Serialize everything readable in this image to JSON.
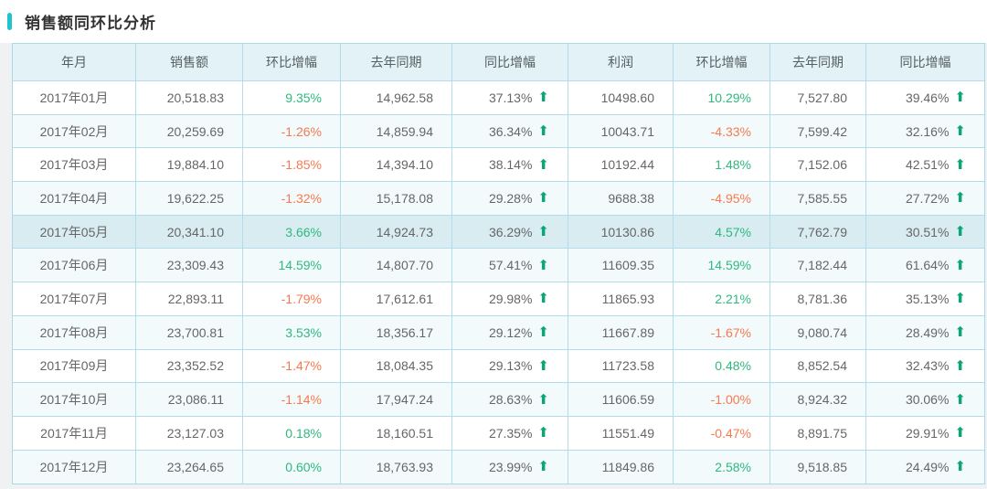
{
  "page": {
    "title": "销售额同环比分析",
    "accent_color": "#1fc4cc"
  },
  "table": {
    "columns": [
      "年月",
      "销售额",
      "环比增幅",
      "去年同期",
      "同比增幅",
      "利润",
      "环比增幅",
      "去年同期",
      "同比增幅"
    ],
    "arrow_icon": "⬆",
    "colors": {
      "positive": "#2eb97e",
      "negative": "#f8794f",
      "arrow_up": "#0ba578",
      "header_bg": "#e2f2f6",
      "row_alt_bg": "#f2fafb",
      "row_highlight_bg": "#d8ecf2",
      "border": "#b2dcea"
    },
    "highlighted_row": "2017年05月",
    "rows": [
      {
        "month": "2017年01月",
        "sales": "20,518.83",
        "sales_mom": "9.35%",
        "sales_ly": "14,962.58",
        "sales_yoy": "37.13%",
        "profit": "10498.60",
        "profit_mom": "10.29%",
        "profit_ly": "7,527.80",
        "profit_yoy": "39.46%"
      },
      {
        "month": "2017年02月",
        "sales": "20,259.69",
        "sales_mom": "-1.26%",
        "sales_ly": "14,859.94",
        "sales_yoy": "36.34%",
        "profit": "10043.71",
        "profit_mom": "-4.33%",
        "profit_ly": "7,599.42",
        "profit_yoy": "32.16%"
      },
      {
        "month": "2017年03月",
        "sales": "19,884.10",
        "sales_mom": "-1.85%",
        "sales_ly": "14,394.10",
        "sales_yoy": "38.14%",
        "profit": "10192.44",
        "profit_mom": "1.48%",
        "profit_ly": "7,152.06",
        "profit_yoy": "42.51%"
      },
      {
        "month": "2017年04月",
        "sales": "19,622.25",
        "sales_mom": "-1.32%",
        "sales_ly": "15,178.08",
        "sales_yoy": "29.28%",
        "profit": "9688.38",
        "profit_mom": "-4.95%",
        "profit_ly": "7,585.55",
        "profit_yoy": "27.72%"
      },
      {
        "month": "2017年05月",
        "sales": "20,341.10",
        "sales_mom": "3.66%",
        "sales_ly": "14,924.73",
        "sales_yoy": "36.29%",
        "profit": "10130.86",
        "profit_mom": "4.57%",
        "profit_ly": "7,762.79",
        "profit_yoy": "30.51%"
      },
      {
        "month": "2017年06月",
        "sales": "23,309.43",
        "sales_mom": "14.59%",
        "sales_ly": "14,807.70",
        "sales_yoy": "57.41%",
        "profit": "11609.35",
        "profit_mom": "14.59%",
        "profit_ly": "7,182.44",
        "profit_yoy": "61.64%"
      },
      {
        "month": "2017年07月",
        "sales": "22,893.11",
        "sales_mom": "-1.79%",
        "sales_ly": "17,612.61",
        "sales_yoy": "29.98%",
        "profit": "11865.93",
        "profit_mom": "2.21%",
        "profit_ly": "8,781.36",
        "profit_yoy": "35.13%"
      },
      {
        "month": "2017年08月",
        "sales": "23,700.81",
        "sales_mom": "3.53%",
        "sales_ly": "18,356.17",
        "sales_yoy": "29.12%",
        "profit": "11667.89",
        "profit_mom": "-1.67%",
        "profit_ly": "9,080.74",
        "profit_yoy": "28.49%"
      },
      {
        "month": "2017年09月",
        "sales": "23,352.52",
        "sales_mom": "-1.47%",
        "sales_ly": "18,084.35",
        "sales_yoy": "29.13%",
        "profit": "11723.58",
        "profit_mom": "0.48%",
        "profit_ly": "8,852.54",
        "profit_yoy": "32.43%"
      },
      {
        "month": "2017年10月",
        "sales": "23,086.11",
        "sales_mom": "-1.14%",
        "sales_ly": "17,947.24",
        "sales_yoy": "28.63%",
        "profit": "11606.59",
        "profit_mom": "-1.00%",
        "profit_ly": "8,924.32",
        "profit_yoy": "30.06%"
      },
      {
        "month": "2017年11月",
        "sales": "23,127.03",
        "sales_mom": "0.18%",
        "sales_ly": "18,160.51",
        "sales_yoy": "27.35%",
        "profit": "11551.49",
        "profit_mom": "-0.47%",
        "profit_ly": "8,891.75",
        "profit_yoy": "29.91%"
      },
      {
        "month": "2017年12月",
        "sales": "23,264.65",
        "sales_mom": "0.60%",
        "sales_ly": "18,763.93",
        "sales_yoy": "23.99%",
        "profit": "11849.86",
        "profit_mom": "2.58%",
        "profit_ly": "9,518.85",
        "profit_yoy": "24.49%"
      }
    ]
  }
}
